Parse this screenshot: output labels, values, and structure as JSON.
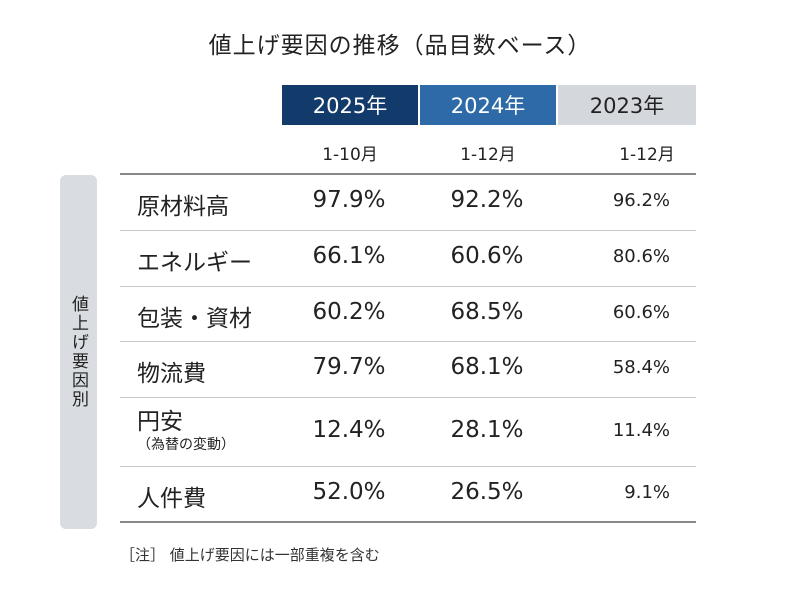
{
  "title": "値上げ要因の推移（品目数ベース）",
  "side_label": "値上げ要因別",
  "footnote": "［注］ 値上げ要因には一部重複を含む",
  "colors": {
    "year_2025_bg": "#123b6b",
    "year_2024_bg": "#2f6aa8",
    "year_2023_bg": "#d4d8dd"
  },
  "chart_data": {
    "type": "table",
    "title": "値上げ要因の推移（品目数ベース）",
    "columns": [
      {
        "year": "2025年",
        "period": "1-10月"
      },
      {
        "year": "2024年",
        "period": "1-12月"
      },
      {
        "year": "2023年",
        "period": "1-12月"
      }
    ],
    "rows": [
      {
        "label": "原材料高",
        "sub": "",
        "values": [
          "97.9%",
          "92.2%",
          "96.2%"
        ]
      },
      {
        "label": "エネルギー",
        "sub": "",
        "values": [
          "66.1%",
          "60.6%",
          "80.6%"
        ]
      },
      {
        "label": "包装・資材",
        "sub": "",
        "values": [
          "60.2%",
          "68.5%",
          "60.6%"
        ]
      },
      {
        "label": "物流費",
        "sub": "",
        "values": [
          "79.7%",
          "68.1%",
          "58.4%"
        ]
      },
      {
        "label": "円安",
        "sub": "（為替の変動）",
        "values": [
          "12.4%",
          "28.1%",
          "11.4%"
        ]
      },
      {
        "label": "人件費",
        "sub": "",
        "values": [
          "52.0%",
          "26.5%",
          "9.1%"
        ]
      }
    ]
  }
}
